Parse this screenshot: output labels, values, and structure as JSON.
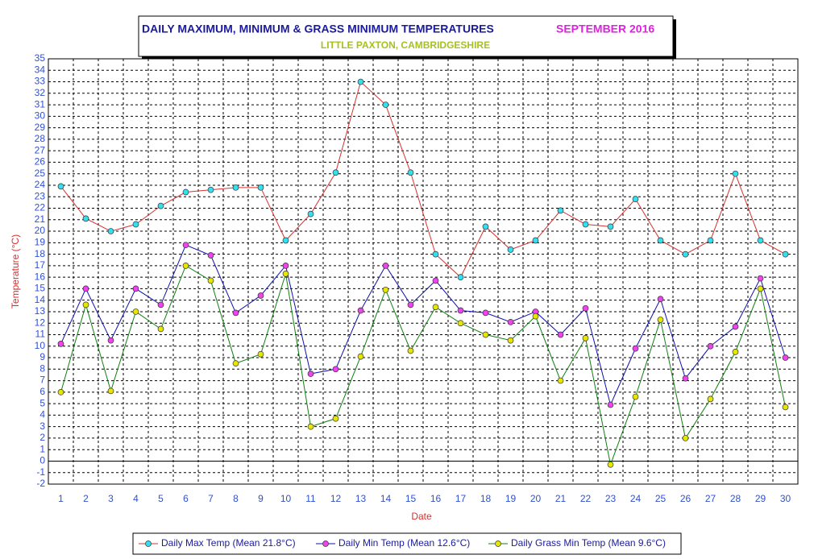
{
  "chart_data": {
    "type": "line",
    "title": "DAILY MAXIMUM, MINIMUM & GRASS MINIMUM TEMPERATURES",
    "title_period": "SEPTEMBER 2016",
    "subtitle": "LITTLE PAXTON, CAMBRIDGESHIRE",
    "x_label": "Date",
    "y_label": "Temperature (°C)",
    "x": [
      1,
      2,
      3,
      4,
      5,
      6,
      7,
      8,
      9,
      10,
      11,
      12,
      13,
      14,
      15,
      16,
      17,
      18,
      19,
      20,
      21,
      22,
      23,
      24,
      25,
      26,
      27,
      28,
      29,
      30
    ],
    "xlim": [
      0.5,
      30.5
    ],
    "xticks": [
      1,
      2,
      3,
      4,
      5,
      6,
      7,
      8,
      9,
      10,
      11,
      12,
      13,
      14,
      15,
      16,
      17,
      18,
      19,
      20,
      21,
      22,
      23,
      24,
      25,
      26,
      27,
      28,
      29,
      30
    ],
    "ylim": [
      -2,
      35
    ],
    "yticks": [
      -2,
      -1,
      0,
      1,
      2,
      3,
      4,
      5,
      6,
      7,
      8,
      9,
      10,
      11,
      12,
      13,
      14,
      15,
      16,
      17,
      18,
      19,
      20,
      21,
      22,
      23,
      24,
      25,
      26,
      27,
      28,
      29,
      30,
      31,
      32,
      33,
      34,
      35
    ],
    "grid": true,
    "legend": "bottom",
    "series": [
      {
        "name": "Daily Max Temp (Mean 21.8°C)",
        "color": "#d93030",
        "marker_color": "#33e0f0",
        "values": [
          23.9,
          21.1,
          20.0,
          20.6,
          22.2,
          23.4,
          23.6,
          23.8,
          23.8,
          19.2,
          21.5,
          25.1,
          33.0,
          31.0,
          25.1,
          18.0,
          16.0,
          20.4,
          18.4,
          19.2,
          21.8,
          20.6,
          20.4,
          22.8,
          19.2,
          18.0,
          19.2,
          25.0,
          19.2,
          18.0
        ]
      },
      {
        "name": "Daily Min Temp (Mean 12.6°C)",
        "color": "#1010b0",
        "marker_color": "#ee44ee",
        "values": [
          10.2,
          15.0,
          10.5,
          15.0,
          13.6,
          18.8,
          17.9,
          12.9,
          14.4,
          17.0,
          7.6,
          8.0,
          13.1,
          17.0,
          13.6,
          15.7,
          13.1,
          12.9,
          12.1,
          13.0,
          11.0,
          13.3,
          4.9,
          9.8,
          14.1,
          7.2,
          10.0,
          11.7,
          15.9,
          9.0
        ]
      },
      {
        "name": "Daily Grass Min Temp (Mean 9.6°C)",
        "color": "#108010",
        "marker_color": "#e6e600",
        "values": [
          6.0,
          13.6,
          6.1,
          13.0,
          11.5,
          17.0,
          15.7,
          8.5,
          9.3,
          16.3,
          3.0,
          3.7,
          9.1,
          14.9,
          9.6,
          13.4,
          12.0,
          11.0,
          10.5,
          12.6,
          7.0,
          10.7,
          -0.3,
          5.6,
          12.3,
          2.0,
          5.4,
          9.5,
          15.0,
          4.7
        ]
      }
    ]
  }
}
